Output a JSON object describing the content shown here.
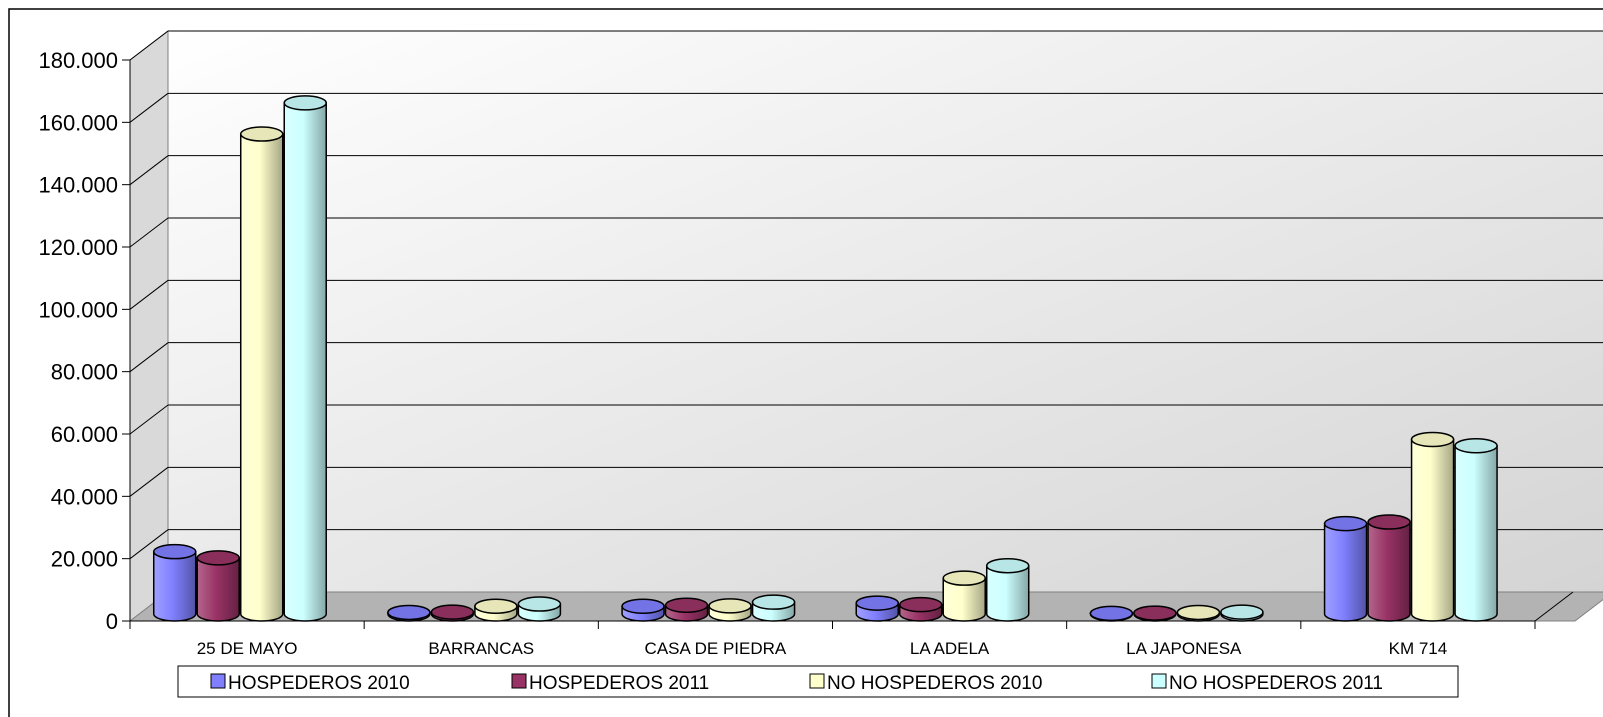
{
  "chart_data": {
    "type": "bar",
    "style": "3d-cylinder",
    "title": "",
    "xlabel": "",
    "ylabel": "",
    "ylim": [
      0,
      180000
    ],
    "y_ticks": [
      {
        "value": 0,
        "label": "0"
      },
      {
        "value": 20000,
        "label": "20.000"
      },
      {
        "value": 40000,
        "label": "40.000"
      },
      {
        "value": 60000,
        "label": "60.000"
      },
      {
        "value": 80000,
        "label": "80.000"
      },
      {
        "value": 100000,
        "label": "100.000"
      },
      {
        "value": 120000,
        "label": "120.000"
      },
      {
        "value": 140000,
        "label": "140.000"
      },
      {
        "value": 160000,
        "label": "160.000"
      },
      {
        "value": 180000,
        "label": "180.000"
      }
    ],
    "grid": true,
    "legend_position": "bottom",
    "categories": [
      "25 DE MAYO",
      "BARRANCAS",
      "CASA DE PIEDRA",
      "LA ADELA",
      "LA JAPONESA",
      "KM 714"
    ],
    "series": [
      {
        "name": "HOSPEDEROS 2010",
        "color": "#8080ff",
        "values": [
          20000,
          500,
          2500,
          3500,
          200,
          29000
        ]
      },
      {
        "name": "HOSPEDEROS 2011",
        "color": "#993366",
        "values": [
          18000,
          600,
          2800,
          3000,
          300,
          29500
        ]
      },
      {
        "name": "NO HOSPEDEROS 2010",
        "color": "#ffffcc",
        "values": [
          154000,
          2500,
          2600,
          11500,
          500,
          56000
        ]
      },
      {
        "name": "NO HOSPEDEROS 2011",
        "color": "#ccffff",
        "values": [
          164000,
          3200,
          3800,
          15500,
          600,
          54000
        ]
      }
    ]
  }
}
